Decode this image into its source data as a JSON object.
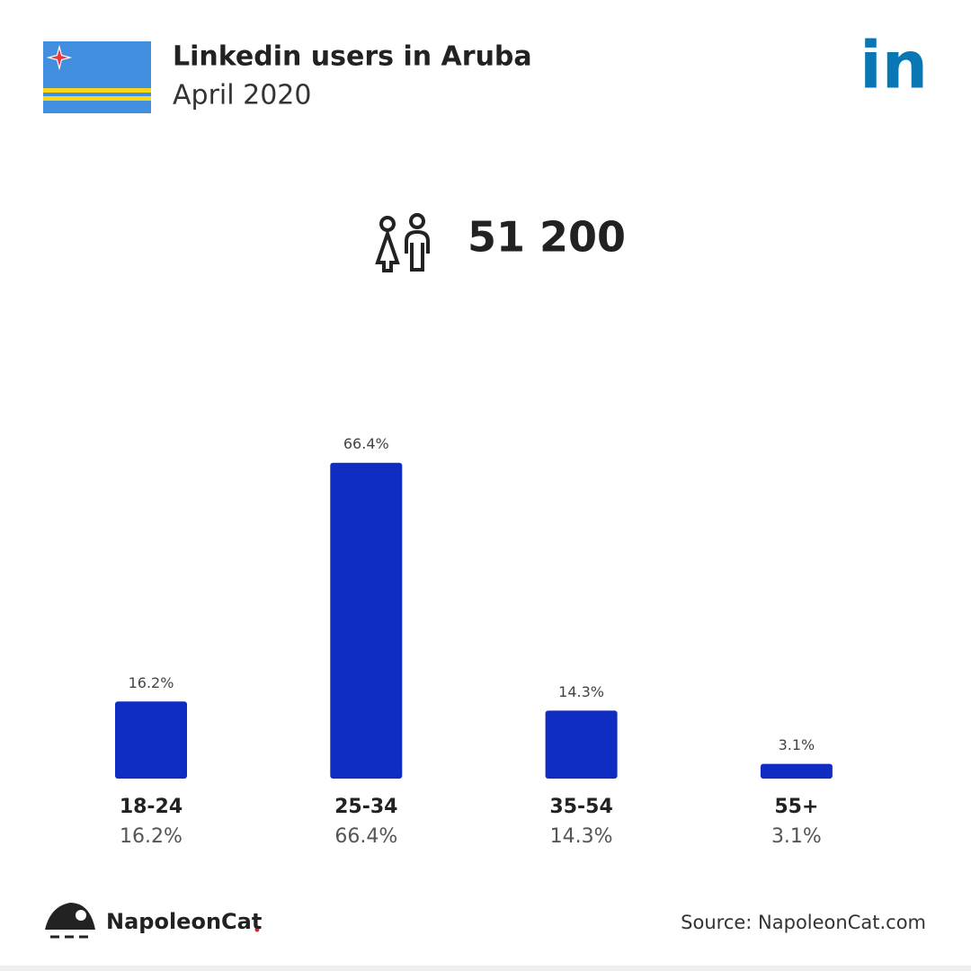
{
  "chart_data": {
    "type": "bar",
    "title": "Linkedin users in Aruba",
    "subtitle": "April 2020",
    "logo": "in",
    "total": "51 200",
    "categories": [
      "18-24",
      "25-34",
      "35-54",
      "55+"
    ],
    "values": [
      16.2,
      66.4,
      14.3,
      3.1
    ],
    "value_labels": [
      "16.2%",
      "66.4%",
      "14.3%",
      "3.1%"
    ],
    "color": "#0f2cc3",
    "ylim": [
      0,
      100
    ],
    "brand": "NapoleonCat",
    "source": "Source: NapoleonCat.com"
  }
}
